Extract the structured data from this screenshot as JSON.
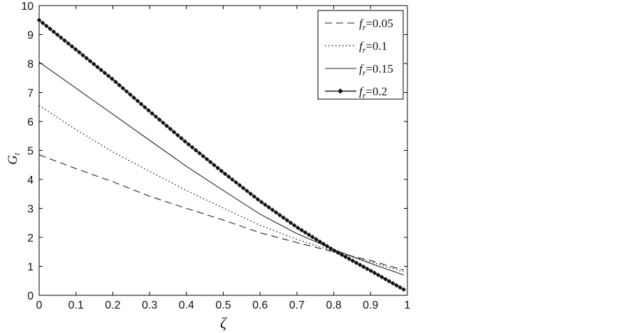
{
  "chart_data": {
    "type": "line",
    "xlabel": "ζ",
    "ylabel": "G",
    "ylabel_sub": "t",
    "xlim": [
      0,
      1
    ],
    "ylim": [
      0,
      10
    ],
    "xticks": [
      "0",
      "0.1",
      "0.2",
      "0.3",
      "0.4",
      "0.5",
      "0.6",
      "0.7",
      "0.8",
      "0.9",
      "1"
    ],
    "yticks": [
      "0",
      "1",
      "2",
      "3",
      "4",
      "5",
      "6",
      "7",
      "8",
      "9",
      "10"
    ],
    "grid": false,
    "legend_position": "top-right",
    "x": [
      0,
      0.1,
      0.2,
      0.3,
      0.4,
      0.5,
      0.6,
      0.7,
      0.8,
      0.9,
      0.99
    ],
    "series": [
      {
        "name": "f_r=0.05",
        "legend_main": "f",
        "legend_sub": "r",
        "legend_rest": "=0.05",
        "style": "dashed",
        "values": [
          4.85,
          4.37,
          3.92,
          3.42,
          3.0,
          2.6,
          2.16,
          1.82,
          1.5,
          1.2,
          0.87
        ]
      },
      {
        "name": "f_r=0.1",
        "legend_main": "f",
        "legend_sub": "r",
        "legend_rest": "=0.1",
        "style": "dotted",
        "values": [
          6.55,
          5.72,
          4.95,
          4.28,
          3.62,
          3.01,
          2.42,
          1.93,
          1.52,
          1.15,
          0.82
        ]
      },
      {
        "name": "f_r=0.15",
        "legend_main": "f",
        "legend_sub": "r",
        "legend_rest": "=0.15",
        "style": "solid",
        "values": [
          8.05,
          7.15,
          6.25,
          5.35,
          4.45,
          3.62,
          2.8,
          2.13,
          1.58,
          1.1,
          0.7
        ]
      },
      {
        "name": "f_r=0.2",
        "legend_main": "f",
        "legend_sub": "r",
        "legend_rest": "=0.2",
        "style": "diamond",
        "values": [
          9.5,
          8.48,
          7.45,
          6.35,
          5.27,
          4.24,
          3.25,
          2.35,
          1.55,
          0.85,
          0.2
        ]
      }
    ]
  }
}
